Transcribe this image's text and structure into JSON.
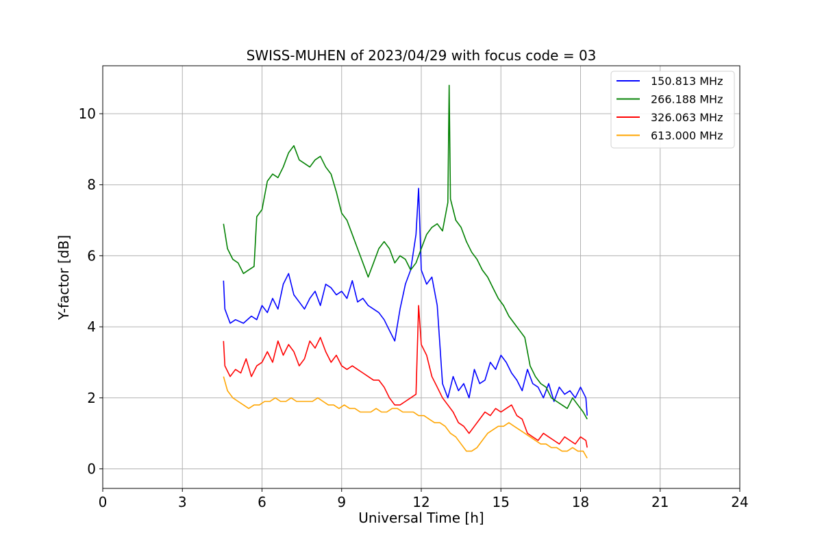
{
  "chart_data": {
    "type": "line",
    "title": "SWISS-MUHEN of 2023/04/29 with focus code = 03",
    "xlabel": "Universal Time [h]",
    "ylabel": "Y-factor [dB]",
    "xlim": [
      0,
      24
    ],
    "ylim": [
      -0.55,
      11.35
    ],
    "xticks": [
      0,
      3,
      6,
      9,
      12,
      15,
      18,
      21,
      24
    ],
    "yticks": [
      0,
      2,
      4,
      6,
      8,
      10
    ],
    "grid": true,
    "legend_position": "top-right",
    "series": [
      {
        "name": "150.813 MHz",
        "color": "#0000ff",
        "x": [
          4.55,
          4.6,
          4.8,
          5.0,
          5.3,
          5.6,
          5.8,
          6.0,
          6.2,
          6.4,
          6.6,
          6.8,
          7.0,
          7.2,
          7.4,
          7.6,
          7.8,
          8.0,
          8.2,
          8.4,
          8.6,
          8.8,
          9.0,
          9.2,
          9.4,
          9.6,
          9.8,
          10.0,
          10.2,
          10.4,
          10.6,
          10.8,
          11.0,
          11.2,
          11.4,
          11.6,
          11.8,
          11.9,
          12.0,
          12.2,
          12.4,
          12.6,
          12.8,
          13.0,
          13.2,
          13.4,
          13.6,
          13.8,
          14.0,
          14.2,
          14.4,
          14.6,
          14.8,
          15.0,
          15.2,
          15.4,
          15.6,
          15.8,
          16.0,
          16.2,
          16.4,
          16.6,
          16.8,
          17.0,
          17.2,
          17.4,
          17.6,
          17.8,
          18.0,
          18.2,
          18.25
        ],
        "y": [
          5.3,
          4.5,
          4.1,
          4.2,
          4.1,
          4.3,
          4.2,
          4.6,
          4.4,
          4.8,
          4.5,
          5.2,
          5.5,
          4.9,
          4.7,
          4.5,
          4.8,
          5.0,
          4.6,
          5.2,
          5.1,
          4.9,
          5.0,
          4.8,
          5.3,
          4.7,
          4.8,
          4.6,
          4.5,
          4.4,
          4.2,
          3.9,
          3.6,
          4.5,
          5.2,
          5.6,
          6.6,
          7.9,
          5.6,
          5.2,
          5.4,
          4.6,
          2.4,
          2.0,
          2.6,
          2.2,
          2.4,
          2.0,
          2.8,
          2.4,
          2.5,
          3.0,
          2.8,
          3.2,
          3.0,
          2.7,
          2.5,
          2.2,
          2.8,
          2.4,
          2.3,
          2.0,
          2.4,
          1.9,
          2.3,
          2.1,
          2.2,
          2.0,
          2.3,
          2.0,
          1.5
        ]
      },
      {
        "name": "266.188 MHz",
        "color": "#008000",
        "x": [
          4.55,
          4.7,
          4.9,
          5.1,
          5.3,
          5.5,
          5.7,
          5.8,
          6.0,
          6.2,
          6.4,
          6.6,
          6.8,
          7.0,
          7.2,
          7.4,
          7.6,
          7.8,
          8.0,
          8.2,
          8.4,
          8.6,
          8.8,
          9.0,
          9.2,
          9.4,
          9.6,
          9.8,
          10.0,
          10.2,
          10.4,
          10.6,
          10.8,
          11.0,
          11.2,
          11.4,
          11.6,
          11.8,
          12.0,
          12.2,
          12.4,
          12.6,
          12.8,
          13.0,
          13.05,
          13.1,
          13.3,
          13.5,
          13.7,
          13.9,
          14.1,
          14.3,
          14.5,
          14.7,
          14.9,
          15.1,
          15.3,
          15.5,
          15.7,
          15.9,
          16.1,
          16.3,
          16.5,
          16.7,
          16.9,
          17.1,
          17.3,
          17.5,
          17.7,
          17.9,
          18.1,
          18.25
        ],
        "y": [
          6.9,
          6.2,
          5.9,
          5.8,
          5.5,
          5.6,
          5.7,
          7.1,
          7.3,
          8.1,
          8.3,
          8.2,
          8.5,
          8.9,
          9.1,
          8.7,
          8.6,
          8.5,
          8.7,
          8.8,
          8.5,
          8.3,
          7.8,
          7.2,
          7.0,
          6.6,
          6.2,
          5.8,
          5.4,
          5.8,
          6.2,
          6.4,
          6.2,
          5.8,
          6.0,
          5.9,
          5.6,
          5.8,
          6.2,
          6.6,
          6.8,
          6.9,
          6.7,
          7.5,
          10.8,
          7.6,
          7.0,
          6.8,
          6.4,
          6.1,
          5.9,
          5.6,
          5.4,
          5.1,
          4.8,
          4.6,
          4.3,
          4.1,
          3.9,
          3.7,
          2.9,
          2.6,
          2.4,
          2.3,
          2.0,
          1.9,
          1.8,
          1.7,
          2.0,
          1.8,
          1.6,
          1.4
        ]
      },
      {
        "name": "326.063 MHz",
        "color": "#ff0000",
        "x": [
          4.55,
          4.6,
          4.8,
          5.0,
          5.2,
          5.4,
          5.6,
          5.8,
          6.0,
          6.2,
          6.4,
          6.6,
          6.8,
          7.0,
          7.2,
          7.4,
          7.6,
          7.8,
          8.0,
          8.2,
          8.4,
          8.6,
          8.8,
          9.0,
          9.2,
          9.4,
          9.6,
          9.8,
          10.0,
          10.2,
          10.4,
          10.6,
          10.8,
          11.0,
          11.2,
          11.4,
          11.6,
          11.8,
          11.9,
          12.0,
          12.2,
          12.4,
          12.6,
          12.8,
          13.0,
          13.2,
          13.4,
          13.6,
          13.8,
          14.0,
          14.2,
          14.4,
          14.6,
          14.8,
          15.0,
          15.2,
          15.4,
          15.6,
          15.8,
          16.0,
          16.2,
          16.4,
          16.6,
          16.8,
          17.0,
          17.2,
          17.4,
          17.6,
          17.8,
          18.0,
          18.2,
          18.25
        ],
        "y": [
          3.6,
          2.9,
          2.6,
          2.8,
          2.7,
          3.1,
          2.6,
          2.9,
          3.0,
          3.3,
          3.0,
          3.6,
          3.2,
          3.5,
          3.3,
          2.9,
          3.1,
          3.6,
          3.4,
          3.7,
          3.3,
          3.0,
          3.2,
          2.9,
          2.8,
          2.9,
          2.8,
          2.7,
          2.6,
          2.5,
          2.5,
          2.3,
          2.0,
          1.8,
          1.8,
          1.9,
          2.0,
          2.1,
          4.6,
          3.5,
          3.2,
          2.6,
          2.3,
          2.0,
          1.8,
          1.6,
          1.3,
          1.2,
          1.0,
          1.2,
          1.4,
          1.6,
          1.5,
          1.7,
          1.6,
          1.7,
          1.8,
          1.5,
          1.4,
          1.0,
          0.9,
          0.8,
          1.0,
          0.9,
          0.8,
          0.7,
          0.9,
          0.8,
          0.7,
          0.9,
          0.8,
          0.6
        ]
      },
      {
        "name": "613.000 MHz",
        "color": "#ffa500",
        "x": [
          4.55,
          4.7,
          4.9,
          5.1,
          5.3,
          5.5,
          5.7,
          5.9,
          6.1,
          6.3,
          6.5,
          6.7,
          6.9,
          7.1,
          7.3,
          7.5,
          7.7,
          7.9,
          8.1,
          8.3,
          8.5,
          8.7,
          8.9,
          9.1,
          9.3,
          9.5,
          9.7,
          9.9,
          10.1,
          10.3,
          10.5,
          10.7,
          10.9,
          11.1,
          11.3,
          11.5,
          11.7,
          11.9,
          12.1,
          12.3,
          12.5,
          12.7,
          12.9,
          13.1,
          13.3,
          13.5,
          13.7,
          13.9,
          14.1,
          14.3,
          14.5,
          14.7,
          14.9,
          15.1,
          15.3,
          15.5,
          15.7,
          15.9,
          16.1,
          16.3,
          16.5,
          16.7,
          16.9,
          17.1,
          17.3,
          17.5,
          17.7,
          17.9,
          18.1,
          18.25
        ],
        "y": [
          2.6,
          2.2,
          2.0,
          1.9,
          1.8,
          1.7,
          1.8,
          1.8,
          1.9,
          1.9,
          2.0,
          1.9,
          1.9,
          2.0,
          1.9,
          1.9,
          1.9,
          1.9,
          2.0,
          1.9,
          1.8,
          1.8,
          1.7,
          1.8,
          1.7,
          1.7,
          1.6,
          1.6,
          1.6,
          1.7,
          1.6,
          1.6,
          1.7,
          1.7,
          1.6,
          1.6,
          1.6,
          1.5,
          1.5,
          1.4,
          1.3,
          1.3,
          1.2,
          1.0,
          0.9,
          0.7,
          0.5,
          0.5,
          0.6,
          0.8,
          1.0,
          1.1,
          1.2,
          1.2,
          1.3,
          1.2,
          1.1,
          1.0,
          0.9,
          0.8,
          0.7,
          0.7,
          0.6,
          0.6,
          0.5,
          0.5,
          0.6,
          0.5,
          0.5,
          0.3
        ]
      }
    ]
  }
}
